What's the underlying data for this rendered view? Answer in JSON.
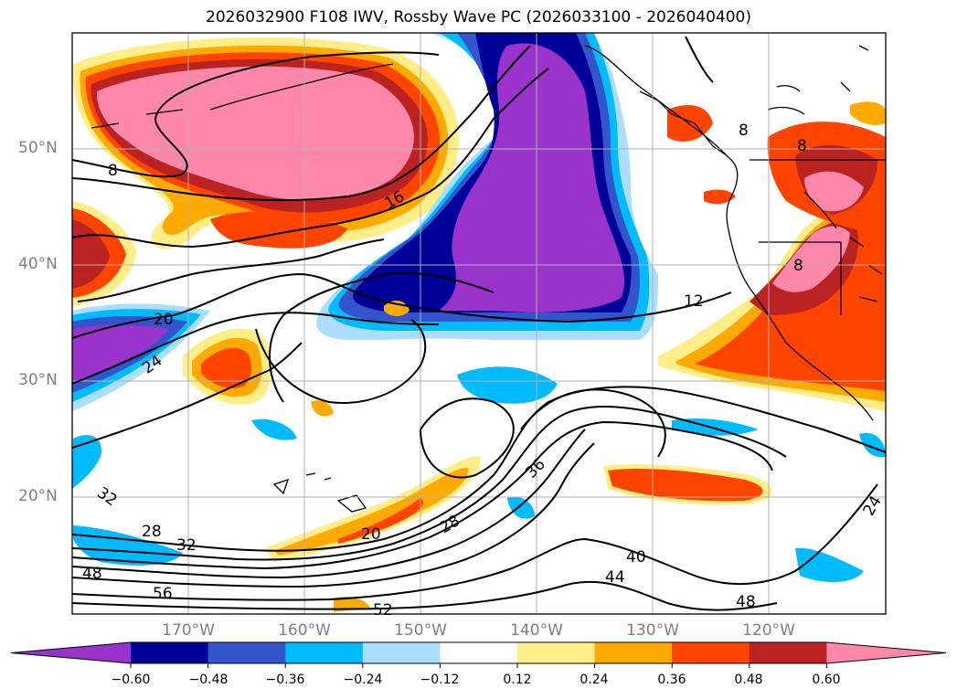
{
  "title": "2026032900 F108 IWV, Rossby Wave PC (2026033100 - 2026040400)",
  "lat_labels": [
    "50°N",
    "40°N",
    "30°N",
    "20°N"
  ],
  "lon_labels": [
    "170°W",
    "160°W",
    "150°W",
    "140°W",
    "130°W",
    "120°W"
  ],
  "colorbar": {
    "colors": [
      "#9933cc",
      "#000099",
      "#3355cc",
      "#00bbff",
      "#aaddff",
      "#ffffff",
      "#ffee88",
      "#ffaa00",
      "#ff4400",
      "#bb2222",
      "#ff88aa"
    ],
    "tick_labels": [
      "−0.60",
      "−0.48",
      "−0.36",
      "−0.24",
      "−0.12",
      "0.12",
      "0.24",
      "0.36",
      "0.48",
      "0.60"
    ]
  },
  "contour_labels": [
    "12",
    "16",
    "20",
    "24",
    "28",
    "32",
    "36",
    "40",
    "44",
    "48",
    "52",
    "56",
    "8",
    "32",
    "28",
    "20",
    "24",
    "48",
    "8",
    "8",
    "8"
  ]
}
